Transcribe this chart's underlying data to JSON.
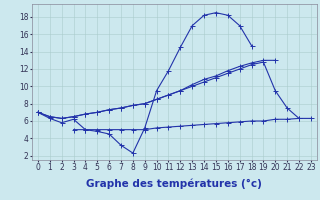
{
  "x": [
    0,
    1,
    2,
    3,
    4,
    5,
    6,
    7,
    8,
    9,
    10,
    11,
    12,
    13,
    14,
    15,
    16,
    17,
    18,
    19,
    20,
    21,
    22,
    23
  ],
  "line_temp": [
    7.0,
    6.3,
    5.8,
    6.2,
    5.0,
    4.8,
    4.5,
    3.2,
    2.3,
    5.2,
    9.5,
    11.8,
    14.5,
    17.0,
    18.2,
    18.5,
    18.2,
    17.0,
    14.7,
    null,
    null,
    null,
    null,
    null
  ],
  "line_max": [
    7.0,
    6.5,
    6.3,
    6.5,
    6.8,
    7.0,
    7.3,
    7.5,
    7.8,
    8.0,
    8.5,
    9.0,
    9.5,
    10.2,
    10.8,
    11.2,
    11.8,
    12.3,
    12.7,
    13.0,
    13.0,
    null,
    null,
    null
  ],
  "line_mid": [
    7.0,
    6.5,
    6.3,
    6.5,
    6.8,
    7.0,
    7.3,
    7.5,
    7.8,
    8.0,
    8.5,
    9.0,
    9.5,
    10.0,
    10.5,
    11.0,
    11.5,
    12.0,
    12.5,
    12.8,
    9.5,
    7.5,
    6.3,
    null
  ],
  "line_min": [
    null,
    null,
    null,
    5.0,
    5.0,
    5.0,
    5.0,
    5.0,
    5.0,
    5.0,
    5.2,
    5.3,
    5.4,
    5.5,
    5.6,
    5.7,
    5.8,
    5.9,
    6.0,
    6.0,
    6.2,
    6.2,
    6.3,
    6.3
  ],
  "background_color": "#cce8ee",
  "line_color": "#2233aa",
  "grid_color": "#aacccc",
  "xlabel": "Graphe des températures (°c)",
  "xlabel_fontsize": 7.5,
  "yticks": [
    2,
    4,
    6,
    8,
    10,
    12,
    14,
    16,
    18
  ],
  "xlim": [
    -0.5,
    23.5
  ],
  "ylim": [
    1.5,
    19.5
  ],
  "tick_fontsize": 5.5,
  "marker_size": 2.0,
  "line_width": 0.8
}
